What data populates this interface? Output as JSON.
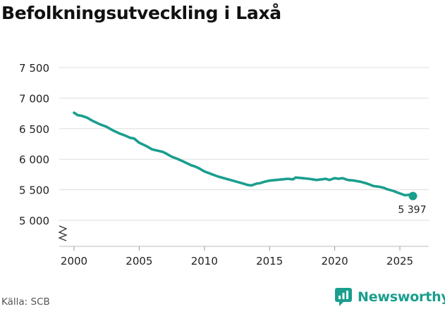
{
  "chart_data": {
    "type": "line",
    "title": "Befolkningsutveckling i Laxå",
    "xlabel": "",
    "ylabel": "",
    "xlim": [
      1999.2,
      2027.3
    ],
    "ylim": [
      4850,
      7500
    ],
    "y_ticks": [
      5000,
      5500,
      6000,
      6500,
      7000,
      7500
    ],
    "y_tick_labels": [
      "5 000",
      "5 500",
      "6 000",
      "6 500",
      "7 000",
      "7 500"
    ],
    "x_ticks": [
      2000,
      2005,
      2010,
      2015,
      2020,
      2025
    ],
    "x_tick_labels": [
      "2000",
      "2005",
      "2010",
      "2015",
      "2020",
      "2025"
    ],
    "axis_break": true,
    "grid": "horizontal",
    "line_color": "#1a9e8e",
    "series": [
      {
        "name": "",
        "x": [
          2000.0,
          2000.3,
          2000.6,
          2001.0,
          2001.4,
          2001.8,
          2002.0,
          2002.5,
          2003.0,
          2003.5,
          2004.0,
          2004.3,
          2004.6,
          2005.0,
          2005.5,
          2006.0,
          2006.4,
          2006.8,
          2007.0,
          2007.5,
          2008.0,
          2008.5,
          2009.0,
          2009.3,
          2009.6,
          2010.0,
          2010.5,
          2011.0,
          2011.5,
          2012.0,
          2012.5,
          2013.0,
          2013.3,
          2013.6,
          2014.0,
          2014.3,
          2014.6,
          2015.0,
          2015.5,
          2016.0,
          2016.4,
          2016.8,
          2017.0,
          2017.5,
          2018.0,
          2018.3,
          2018.6,
          2019.0,
          2019.3,
          2019.6,
          2020.0,
          2020.3,
          2020.6,
          2021.0,
          2021.5,
          2022.0,
          2022.5,
          2023.0,
          2023.4,
          2023.8,
          2024.0,
          2024.5,
          2025.0,
          2025.4,
          2025.8,
          2026.0
        ],
        "y": [
          6760,
          6720,
          6710,
          6680,
          6630,
          6590,
          6570,
          6530,
          6470,
          6420,
          6380,
          6350,
          6340,
          6270,
          6220,
          6160,
          6140,
          6120,
          6100,
          6040,
          6000,
          5950,
          5900,
          5880,
          5850,
          5800,
          5760,
          5720,
          5690,
          5660,
          5630,
          5600,
          5580,
          5570,
          5600,
          5610,
          5630,
          5650,
          5660,
          5670,
          5680,
          5670,
          5700,
          5690,
          5680,
          5670,
          5660,
          5670,
          5680,
          5660,
          5690,
          5680,
          5690,
          5660,
          5650,
          5630,
          5600,
          5560,
          5550,
          5530,
          5510,
          5480,
          5440,
          5410,
          5420,
          5397
        ]
      }
    ],
    "last_value_label": "5 397"
  },
  "source": "Källa: SCB",
  "brand": "Newsworthy"
}
